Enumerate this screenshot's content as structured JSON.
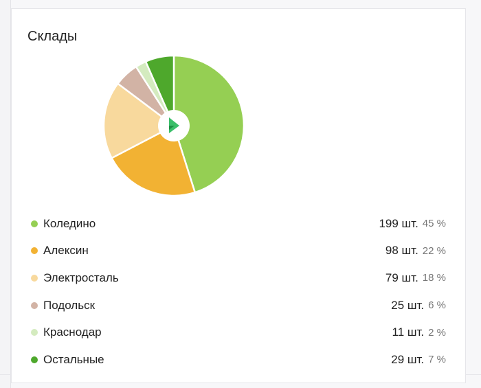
{
  "card": {
    "title": "Склады"
  },
  "chart_data": {
    "type": "pie",
    "title": "Склады",
    "categories": [
      "Коледино",
      "Алексин",
      "Электросталь",
      "Подольск",
      "Краснодар",
      "Остальные"
    ],
    "values": [
      199,
      98,
      79,
      25,
      11,
      29
    ],
    "percents": [
      45,
      22,
      18,
      6,
      2,
      7
    ],
    "unit": "шт.",
    "colors": [
      "#95cf53",
      "#f2b233",
      "#f8d99d",
      "#d2b3a5",
      "#d4ebbf",
      "#4ea82c"
    ],
    "center_icon": "brand-play-logo-icon"
  },
  "legend": {
    "items": [
      {
        "name": "Коледино",
        "count": "199 шт.",
        "pct": "45 %",
        "color": "#95cf53"
      },
      {
        "name": "Алексин",
        "count": "98 шт.",
        "pct": "22 %",
        "color": "#f2b233"
      },
      {
        "name": "Электросталь",
        "count": "79 шт.",
        "pct": "18 %",
        "color": "#f8d99d"
      },
      {
        "name": "Подольск",
        "count": "25 шт.",
        "pct": "6 %",
        "color": "#d2b3a5"
      },
      {
        "name": "Краснодар",
        "count": "11 шт.",
        "pct": "2 %",
        "color": "#d4ebbf"
      },
      {
        "name": "Остальные",
        "count": "29 шт.",
        "pct": "7 %",
        "color": "#4ea82c"
      }
    ]
  }
}
